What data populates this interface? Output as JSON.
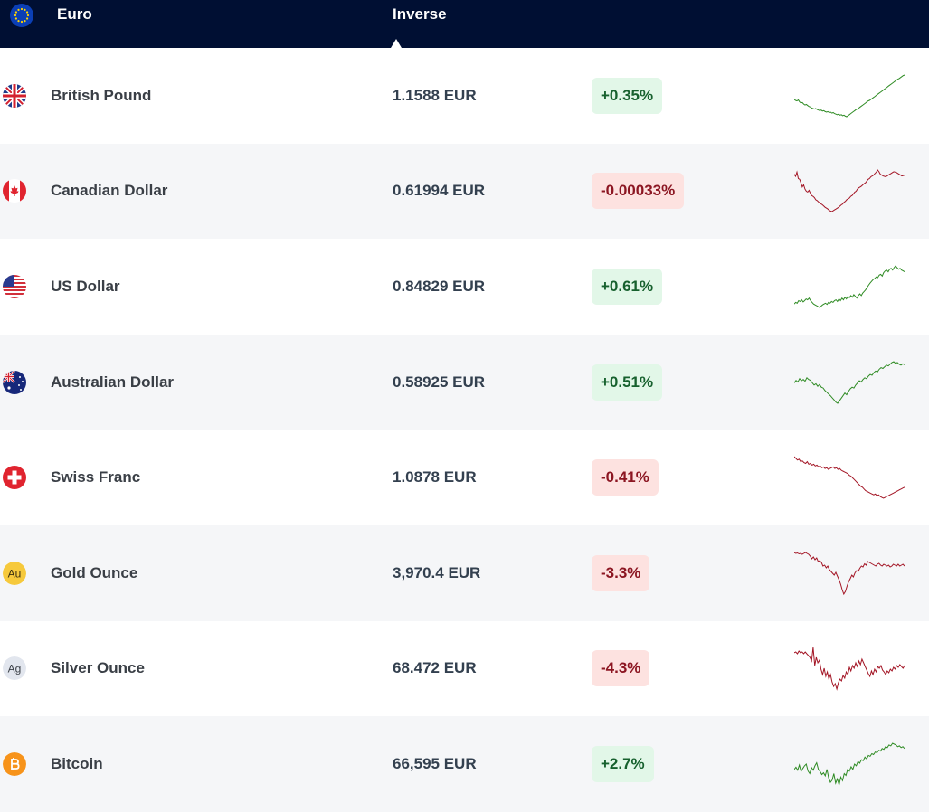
{
  "header": {
    "base_currency": "Euro",
    "inverse_label": "Inverse",
    "base_flag_icon": "eu-flag-icon"
  },
  "colors": {
    "header_bg": "#000f33",
    "positive_bg": "#e2f7e8",
    "positive_text": "#17612e",
    "negative_bg": "#fde2e0",
    "negative_text": "#8c1622",
    "sparkline_up": "#2e8b23",
    "sparkline_down": "#a31525"
  },
  "rows": [
    {
      "name": "British Pound",
      "rate": "1.1588 EUR",
      "change": "+0.35%",
      "direction": "up",
      "icon": "uk-flag-icon",
      "trend": [
        52,
        50,
        49,
        51,
        47,
        45,
        46,
        43,
        41,
        42,
        40,
        38,
        37,
        35,
        34,
        33,
        34,
        32,
        31,
        30,
        31,
        29,
        30,
        28,
        27,
        28,
        26,
        27,
        25,
        26,
        24,
        23,
        22,
        23,
        21,
        22,
        20,
        21,
        19,
        18,
        20,
        22,
        24,
        26,
        28,
        30,
        32,
        33,
        35,
        37,
        39,
        41,
        43,
        45,
        47,
        49,
        50,
        52,
        54,
        56,
        58,
        60,
        62,
        64,
        66,
        68,
        70,
        72,
        74,
        76,
        78,
        80,
        82,
        84,
        86,
        88,
        90,
        92,
        93,
        95,
        97,
        99,
        100
      ]
    },
    {
      "name": "Canadian Dollar",
      "rate": "0.61994 EUR",
      "change": "-0.00033%",
      "direction": "down",
      "icon": "canada-flag-icon",
      "trend": [
        90,
        85,
        95,
        80,
        78,
        70,
        60,
        65,
        55,
        50,
        48,
        52,
        45,
        40,
        38,
        35,
        30,
        28,
        25,
        22,
        20,
        18,
        15,
        12,
        10,
        8,
        5,
        3,
        2,
        4,
        6,
        8,
        10,
        12,
        15,
        18,
        20,
        24,
        26,
        30,
        32,
        34,
        38,
        40,
        44,
        48,
        50,
        55,
        58,
        60,
        62,
        65,
        68,
        70,
        74,
        78,
        80,
        84,
        86,
        88,
        92,
        95,
        100,
        96,
        90,
        88,
        86,
        85,
        84,
        86,
        88,
        90,
        92,
        94,
        96,
        95,
        94,
        92,
        90,
        88,
        86,
        87,
        88
      ]
    },
    {
      "name": "US Dollar",
      "rate": "0.84829 EUR",
      "change": "+0.61%",
      "direction": "up",
      "icon": "us-flag-icon",
      "trend": [
        10,
        14,
        12,
        18,
        16,
        20,
        15,
        18,
        22,
        20,
        24,
        18,
        14,
        10,
        8,
        6,
        4,
        2,
        5,
        8,
        10,
        12,
        9,
        14,
        12,
        16,
        14,
        18,
        20,
        16,
        22,
        18,
        24,
        20,
        26,
        22,
        28,
        25,
        30,
        26,
        32,
        28,
        24,
        30,
        34,
        30,
        36,
        40,
        44,
        50,
        55,
        60,
        64,
        68,
        70,
        74,
        72,
        78,
        80,
        76,
        84,
        88,
        90,
        86,
        92,
        94,
        90,
        96,
        100,
        95,
        92,
        94,
        90,
        88,
        86
      ]
    },
    {
      "name": "Australian Dollar",
      "rate": "0.58925 EUR",
      "change": "+0.51%",
      "direction": "up",
      "icon": "australia-flag-icon",
      "trend": [
        50,
        56,
        52,
        60,
        55,
        58,
        54,
        62,
        58,
        56,
        50,
        45,
        48,
        42,
        46,
        40,
        38,
        32,
        28,
        24,
        20,
        15,
        10,
        5,
        2,
        8,
        14,
        20,
        26,
        22,
        30,
        36,
        40,
        38,
        45,
        50,
        55,
        52,
        58,
        62,
        60,
        66,
        70,
        68,
        74,
        78,
        76,
        82,
        86,
        84,
        88,
        92,
        90,
        94,
        98,
        100,
        96,
        98,
        94,
        92,
        95,
        93
      ]
    },
    {
      "name": "Swiss Franc",
      "rate": "1.0878 EUR",
      "change": "-0.41%",
      "direction": "down",
      "icon": "switzerland-flag-icon",
      "trend": [
        100,
        96,
        92,
        94,
        88,
        90,
        86,
        84,
        88,
        82,
        84,
        80,
        82,
        78,
        80,
        76,
        78,
        74,
        76,
        72,
        74,
        70,
        72,
        74,
        76,
        72,
        74,
        70,
        72,
        68,
        66,
        64,
        62,
        60,
        56,
        54,
        50,
        46,
        42,
        38,
        34,
        30,
        28,
        24,
        20,
        18,
        16,
        14,
        12,
        10,
        12,
        8,
        10,
        6,
        4,
        2,
        4,
        6,
        8,
        10,
        12,
        14,
        16,
        18,
        20,
        22,
        24,
        26,
        28
      ]
    },
    {
      "name": "Gold Ounce",
      "rate": "3,970.4 EUR",
      "change": "-3.3%",
      "direction": "down",
      "icon": "gold-coin-icon",
      "metal_symbol": "Au",
      "trend": [
        100,
        98,
        99,
        97,
        98,
        96,
        98,
        100,
        98,
        96,
        92,
        86,
        90,
        84,
        88,
        80,
        82,
        78,
        70,
        72,
        66,
        70,
        62,
        58,
        54,
        50,
        56,
        48,
        40,
        30,
        18,
        8,
        14,
        25,
        35,
        42,
        50,
        46,
        55,
        60,
        58,
        65,
        70,
        68,
        75,
        72,
        80,
        78,
        76,
        74,
        72,
        70,
        74,
        76,
        72,
        70,
        74,
        72,
        70,
        72,
        68,
        70,
        74,
        72,
        70,
        74,
        70,
        72,
        74,
        70
      ]
    },
    {
      "name": "Silver Ounce",
      "rate": "68.472 EUR",
      "change": "-4.3%",
      "direction": "down",
      "icon": "silver-coin-icon",
      "metal_symbol": "Ag",
      "trend": [
        88,
        90,
        86,
        92,
        88,
        90,
        86,
        90,
        86,
        82,
        78,
        70,
        100,
        60,
        78,
        66,
        72,
        52,
        40,
        54,
        36,
        46,
        30,
        40,
        24,
        14,
        20,
        8,
        22,
        30,
        26,
        38,
        32,
        46,
        40,
        56,
        48,
        60,
        54,
        66,
        58,
        70,
        62,
        74,
        66,
        58,
        50,
        42,
        36,
        48,
        40,
        52,
        46,
        58,
        54,
        60,
        50,
        46,
        40,
        48,
        44,
        52,
        48,
        56,
        52,
        60,
        56,
        62,
        58,
        54,
        60
      ]
    },
    {
      "name": "Bitcoin",
      "rate": "66,595 EUR",
      "change": "+2.7%",
      "direction": "up",
      "icon": "bitcoin-icon",
      "trend": [
        40,
        45,
        38,
        50,
        35,
        42,
        48,
        52,
        36,
        30,
        44,
        38,
        48,
        55,
        40,
        35,
        28,
        32,
        25,
        40,
        20,
        10,
        15,
        30,
        8,
        18,
        4,
        22,
        14,
        30,
        26,
        40,
        36,
        46,
        40,
        52,
        48,
        58,
        54,
        62,
        60,
        68,
        64,
        72,
        70,
        76,
        74,
        80,
        78,
        84,
        82,
        88,
        86,
        92,
        90,
        96,
        94,
        100,
        98,
        96,
        92,
        94,
        90,
        92,
        88
      ]
    }
  ]
}
